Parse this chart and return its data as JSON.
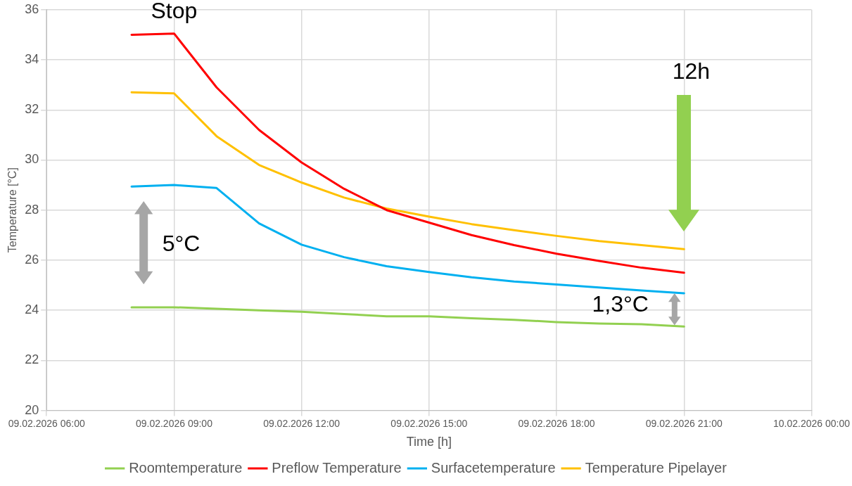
{
  "chart_data": {
    "type": "line",
    "xlabel": "Time [h]",
    "ylabel": "Temperature [°C]",
    "x": [
      "2026-02-09T08:00",
      "2026-02-09T09:00",
      "2026-02-09T10:00",
      "2026-02-09T11:00",
      "2026-02-09T12:00",
      "2026-02-09T13:00",
      "2026-02-09T14:00",
      "2026-02-09T15:00",
      "2026-02-09T16:00",
      "2026-02-09T17:00",
      "2026-02-09T18:00",
      "2026-02-09T19:00",
      "2026-02-09T20:00",
      "2026-02-09T21:00"
    ],
    "series": [
      {
        "name": "Roomtemperature",
        "color": "#92d050",
        "values": [
          24.12,
          24.12,
          24.06,
          24.0,
          23.94,
          23.85,
          23.76,
          23.76,
          23.68,
          23.62,
          23.53,
          23.47,
          23.44,
          23.35
        ]
      },
      {
        "name": "Preflow Temperature",
        "color": "#ff0000",
        "values": [
          35.0,
          35.05,
          32.9,
          31.2,
          29.9,
          28.85,
          28.0,
          27.5,
          27.0,
          26.6,
          26.26,
          25.97,
          25.7,
          25.5
        ]
      },
      {
        "name": "Surfacetemperature",
        "color": "#00b0f0",
        "values": [
          28.94,
          29.0,
          28.88,
          27.47,
          26.62,
          26.12,
          25.76,
          25.53,
          25.32,
          25.15,
          25.03,
          24.91,
          24.79,
          24.68
        ]
      },
      {
        "name": "Temperature Pipelayer",
        "color": "#ffc000",
        "values": [
          32.7,
          32.66,
          30.95,
          29.8,
          29.1,
          28.5,
          28.06,
          27.74,
          27.44,
          27.2,
          26.97,
          26.76,
          26.6,
          26.44
        ]
      }
    ],
    "xlim": [
      "2026-02-09T06:00",
      "2026-02-10T00:00"
    ],
    "xticks": [
      {
        "value": "2026-02-09T06:00",
        "label": "09.02.2026 06:00"
      },
      {
        "value": "2026-02-09T09:00",
        "label": "09.02.2026 09:00"
      },
      {
        "value": "2026-02-09T12:00",
        "label": "09.02.2026 12:00"
      },
      {
        "value": "2026-02-09T15:00",
        "label": "09.02.2026 15:00"
      },
      {
        "value": "2026-02-09T18:00",
        "label": "09.02.2026 18:00"
      },
      {
        "value": "2026-02-09T21:00",
        "label": "09.02.2026 21:00"
      },
      {
        "value": "2026-02-10T00:00",
        "label": "10.02.2026 00:00"
      }
    ],
    "ylim": [
      20,
      36
    ],
    "yticks": [
      20,
      22,
      24,
      26,
      28,
      30,
      32,
      34,
      36
    ],
    "annotations": [
      "Stop",
      "12h",
      "5°C",
      "1,3°C"
    ],
    "grid": true,
    "legend": "bottom",
    "marker": "none",
    "line_style": "solid"
  }
}
